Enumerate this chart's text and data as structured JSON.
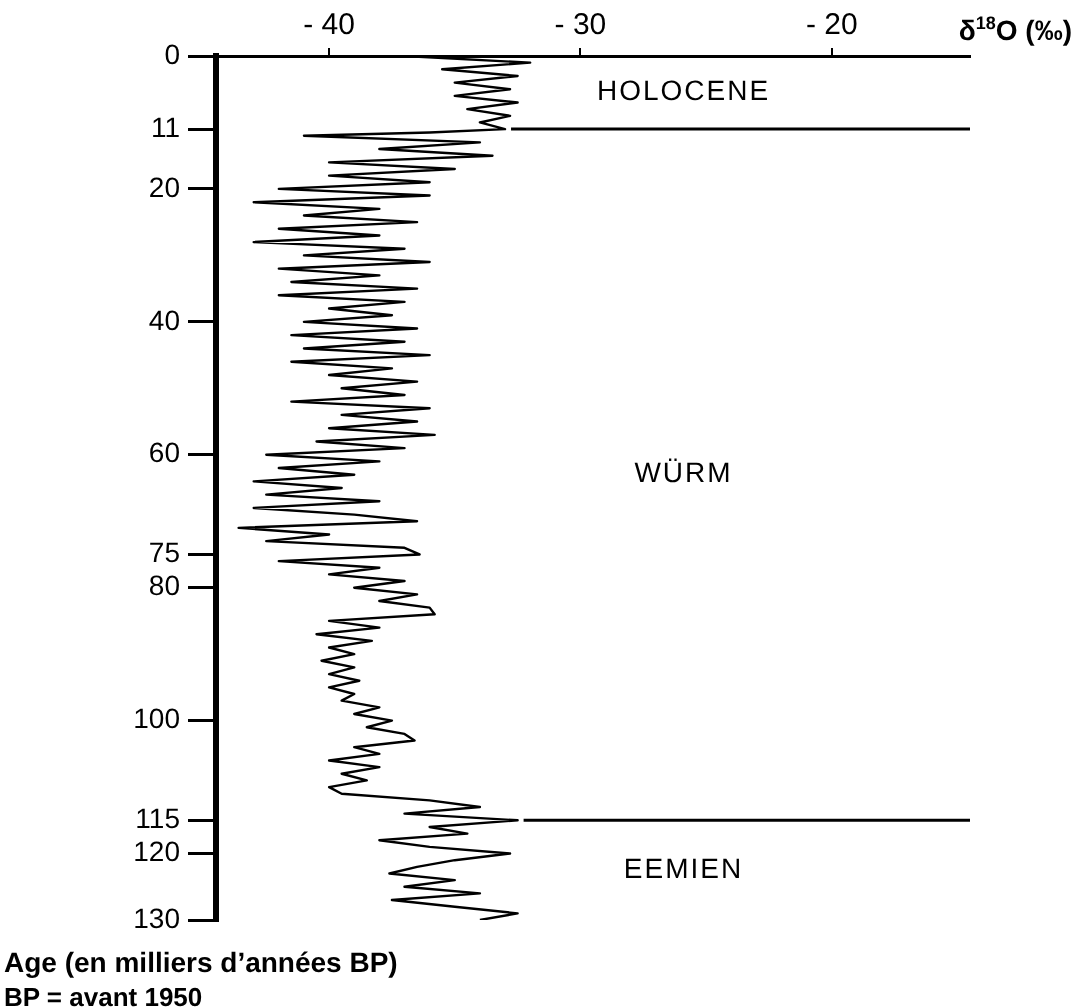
{
  "chart_data": {
    "type": "line",
    "xlabel": "δ$^{18}$O (‰)",
    "ylabel": "Age (en milliers d’années BP)",
    "xlim": [
      -44.5,
      -14.5
    ],
    "xticks": [
      {
        "value": -40,
        "label": "- 40"
      },
      {
        "value": -30,
        "label": "- 30"
      },
      {
        "value": -20,
        "label": "- 20"
      }
    ],
    "ylim": [
      130,
      0
    ],
    "yticks": [
      0,
      11,
      20,
      40,
      60,
      75,
      80,
      100,
      115,
      120,
      130
    ],
    "grid": false,
    "legend": false,
    "marker": "none",
    "line_style": "solid",
    "ref_lines": [
      {
        "axis": "y",
        "value": 11,
        "color": "#000000"
      },
      {
        "axis": "y",
        "value": 115,
        "color": "#000000"
      }
    ],
    "annotations": [
      "HOLOCENE",
      "WÜRM",
      "EEMIEN",
      "BP = avant 1950"
    ],
    "series": [
      {
        "color": "#000000",
        "x": [
          -37,
          -32,
          -35.5,
          -32.5,
          -35,
          -32.8,
          -35,
          -32.5,
          -34.5,
          -32.8,
          -34,
          -33,
          -36,
          -41,
          -34,
          -38,
          -33.5,
          -40,
          -35,
          -40,
          -36,
          -42,
          -36,
          -43,
          -38,
          -41,
          -36.5,
          -42,
          -38,
          -43,
          -37,
          -41,
          -36,
          -42,
          -38,
          -41.5,
          -36.5,
          -42,
          -37,
          -40,
          -37.5,
          -41,
          -36.5,
          -41.5,
          -37,
          -41,
          -36,
          -41.5,
          -37.5,
          -40,
          -36.5,
          -39.5,
          -37,
          -41.5,
          -36,
          -39.5,
          -36.5,
          -40,
          -35.8,
          -40.5,
          -37,
          -42.5,
          -38,
          -42,
          -39,
          -43,
          -39.5,
          -42.5,
          -38,
          -43,
          -39,
          -36.5,
          -43.6,
          -40,
          -42.5,
          -37,
          -36.4,
          -42,
          -38,
          -40,
          -37,
          -39,
          -36.5,
          -38,
          -36,
          -35.8,
          -40,
          -38,
          -40.5,
          -38.3,
          -40,
          -39,
          -40.3,
          -39,
          -40,
          -38.8,
          -40,
          -39,
          -39.5,
          -38,
          -39,
          -37.5,
          -38.5,
          -37,
          -36.6,
          -39,
          -38,
          -40,
          -38,
          -39.5,
          -38.5,
          -40,
          -39.5,
          -36,
          -34,
          -37,
          -32.5,
          -36,
          -34.5,
          -38,
          -36,
          -32.8,
          -35,
          -36.5,
          -37.6,
          -35,
          -37,
          -34,
          -37.5,
          -35,
          -32.5,
          -34
        ],
        "values": [
          0,
          1,
          2,
          3,
          4,
          5,
          6,
          7,
          8,
          9,
          10,
          11,
          11.5,
          12,
          13,
          14,
          15,
          16,
          17,
          18,
          19,
          20,
          21,
          22,
          23,
          24,
          25,
          26,
          27,
          28,
          29,
          30,
          31,
          32,
          33,
          34,
          35,
          36,
          37,
          38,
          39,
          40,
          41,
          42,
          43,
          44,
          45,
          46,
          47,
          48,
          49,
          50,
          51,
          52,
          53,
          54,
          55,
          56,
          57,
          58,
          59,
          60,
          61,
          62,
          63,
          64,
          65,
          66,
          67,
          68,
          69,
          70,
          71,
          72,
          73,
          74,
          75,
          76,
          77,
          78,
          79,
          80,
          81,
          82,
          83,
          84,
          85,
          86,
          87,
          88,
          89,
          90,
          91,
          92,
          93,
          94,
          95,
          96,
          97,
          98,
          99,
          100,
          101,
          102,
          103,
          104,
          105,
          106,
          107,
          108,
          109,
          110,
          111,
          112,
          113,
          114,
          115,
          116,
          117,
          118,
          119,
          120,
          121,
          122,
          123,
          124,
          125,
          126,
          127,
          128,
          129,
          130
        ]
      }
    ]
  }
}
